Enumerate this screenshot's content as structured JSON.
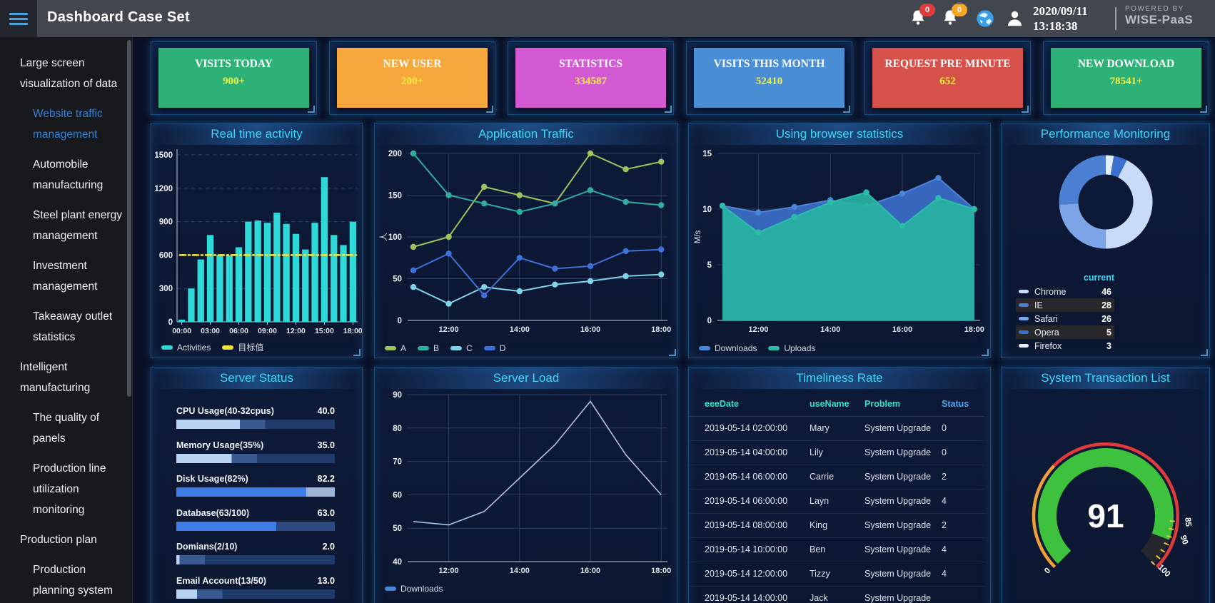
{
  "header": {
    "title": "Dashboard Case Set",
    "date": "2020/09/11",
    "time": "13:18:38",
    "powered_by": "POWERED BY",
    "brand": "WISE-PaaS",
    "badges": [
      {
        "count": "0",
        "color": "#e23b3b"
      },
      {
        "count": "0",
        "color": "#f5a623"
      }
    ]
  },
  "sidebar": {
    "active_color": "#2c82da",
    "items": [
      {
        "label": "Large screen visualization of data",
        "level": 0,
        "active": false
      },
      {
        "label": "Website traffic management",
        "level": 1,
        "active": true
      },
      {
        "label": "Automobile manufacturing",
        "level": 1,
        "active": false
      },
      {
        "label": "Steel plant energy management",
        "level": 1,
        "active": false
      },
      {
        "label": "Investment management",
        "level": 1,
        "active": false
      },
      {
        "label": "Takeaway outlet statistics",
        "level": 1,
        "active": false
      },
      {
        "label": "Intelligent manufacturing",
        "level": 0,
        "active": false
      },
      {
        "label": "The quality of panels",
        "level": 1,
        "active": false
      },
      {
        "label": "Production line utilization monitoring",
        "level": 1,
        "active": false
      },
      {
        "label": "Production plan",
        "level": 0,
        "active": false
      },
      {
        "label": "Production planning system",
        "level": 1,
        "active": false
      }
    ]
  },
  "stat_cards": [
    {
      "title": "VISITS TODAY",
      "value": "900+",
      "color": "#2eb177"
    },
    {
      "title": "NEW USER",
      "value": "200+",
      "color": "#f7a83c"
    },
    {
      "title": "STATISTICS",
      "value": "334587",
      "color": "#d45ad4"
    },
    {
      "title": "VISITS THIS MONTH",
      "value": "52410",
      "color": "#4a8ed6"
    },
    {
      "title": "REQUEST PRE MINUTE",
      "value": "652",
      "color": "#d5514a"
    },
    {
      "title": "NEW DOWNLOAD",
      "value": "78541+",
      "color": "#2eb177"
    }
  ],
  "value_color": "#f6f23a",
  "chart_data": [
    {
      "id": "realtime",
      "type": "bar",
      "title": "Real time activity",
      "series_name": "Activities",
      "values": [
        20,
        300,
        560,
        780,
        600,
        595,
        670,
        900,
        910,
        890,
        980,
        880,
        790,
        650,
        890,
        1300,
        780,
        690,
        900
      ],
      "x_ticks": [
        "00:00",
        "03:00",
        "06:00",
        "09:00",
        "12:00",
        "15:00",
        "18:00"
      ],
      "x_tick_indices": [
        0,
        3,
        6,
        9,
        12,
        15,
        18
      ],
      "ylim": [
        0,
        1500
      ],
      "ytick_step": 300,
      "bar_color": "#2ed9d9",
      "target_value": 600,
      "target_color": "#f2e23a",
      "legend": [
        {
          "label": "Activities",
          "color": "#2ed9d9"
        },
        {
          "label": "目标值",
          "color": "#f2e23a"
        }
      ]
    },
    {
      "id": "apptraffic",
      "type": "line",
      "title": "Application Traffic",
      "ylabel": "人",
      "ylim": [
        0,
        200
      ],
      "ytick_step": 50,
      "x_ticks": [
        "12:00",
        "14:00",
        "16:00",
        "18:00"
      ],
      "x_tick_indices": [
        1,
        3,
        5,
        7
      ],
      "series": [
        {
          "name": "A",
          "color": "#9dc35e",
          "values": [
            88,
            100,
            160,
            150,
            140,
            200,
            181,
            190
          ]
        },
        {
          "name": "B",
          "color": "#2fae9e",
          "values": [
            200,
            150,
            140,
            130,
            140,
            156,
            142,
            138
          ]
        },
        {
          "name": "C",
          "color": "#7ed3e8",
          "values": [
            40,
            20,
            40,
            35,
            43,
            47,
            53,
            55
          ]
        },
        {
          "name": "D",
          "color": "#3f6fd8",
          "values": [
            60,
            80,
            30,
            75,
            62,
            65,
            83,
            85
          ]
        }
      ]
    },
    {
      "id": "browser",
      "type": "area",
      "title": "Using browser statistics",
      "ylabel": "M/s",
      "ylim": [
        0,
        15
      ],
      "ytick_step": 5,
      "x_ticks": [
        "12:00",
        "14:00",
        "16:00",
        "18:00"
      ],
      "x_tick_indices": [
        1,
        3,
        5,
        7
      ],
      "series": [
        {
          "name": "Downloads",
          "color": "#4a86d8",
          "fill": "#3a6ec8",
          "values": [
            10.3,
            9.7,
            10.2,
            10.8,
            10.3,
            11.4,
            12.8,
            10
          ]
        },
        {
          "name": "Uploads",
          "color": "#2bbcaa",
          "fill": "#28b2a2",
          "values": [
            10.3,
            7.9,
            9.3,
            10.6,
            11.5,
            8.5,
            11,
            10
          ]
        }
      ]
    },
    {
      "id": "perfdonut",
      "type": "donut",
      "title": "Performance Monitoring",
      "legend_header": "current",
      "slices": [
        {
          "name": "Chrome",
          "value": 46,
          "color": "#c9dcf7"
        },
        {
          "name": "IE",
          "value": 28,
          "color": "#4a7fd2"
        },
        {
          "name": "Safari",
          "value": 26,
          "color": "#7ca4e6"
        },
        {
          "name": "Opera",
          "value": 5,
          "color": "#3a6fd0"
        },
        {
          "name": "Firefox",
          "value": 3,
          "color": "#e6eefb"
        }
      ],
      "stripe_rows": [
        1,
        3
      ]
    },
    {
      "id": "serverstatus",
      "type": "hbar",
      "title": "Server Status",
      "items": [
        {
          "label": "CPU Usage(40-32cpus)",
          "value": "40.0",
          "pct": 40,
          "bar_color": "#b9d2f2",
          "mid_color": "#3a5a8f",
          "track_color": "#203a69"
        },
        {
          "label": "Memory Usage(35%)",
          "value": "35.0",
          "pct": 35,
          "bar_color": "#b9d2f2",
          "mid_color": "#3a5a8f",
          "track_color": "#203a69"
        },
        {
          "label": "Disk Usage(82%)",
          "value": "82.2",
          "pct": 82,
          "bar_color": "#3e7ce8",
          "mid_color": "#9db4d6",
          "track_color": "#9db4d6"
        },
        {
          "label": "Database(63/100)",
          "value": "63.0",
          "pct": 63,
          "bar_color": "#3e7ce8",
          "mid_color": "#2c4a80",
          "track_color": "#2c4a80"
        },
        {
          "label": "Domians(2/10)",
          "value": "2.0",
          "pct": 2,
          "bar_color": "#b9d2f2",
          "mid_color": "#3a5a8f",
          "track_color": "#203a69"
        },
        {
          "label": "Email Account(13/50)",
          "value": "13.0",
          "pct": 13,
          "bar_color": "#b9d2f2",
          "mid_color": "#3a5a8f",
          "track_color": "#203a69"
        }
      ]
    },
    {
      "id": "serverload",
      "type": "line",
      "title": "Server Load",
      "ylim": [
        40,
        90
      ],
      "ytick_step": 10,
      "x_ticks": [
        "12:00",
        "14:00",
        "16:00",
        "18:00"
      ],
      "x_tick_indices": [
        1,
        3,
        5,
        7
      ],
      "series": [
        {
          "name": "Downloads",
          "color": "#a9c3e8",
          "values": [
            52,
            51,
            55,
            65,
            75,
            88,
            72,
            60
          ]
        }
      ],
      "legend": [
        {
          "label": "Downloads",
          "color": "#4a86d8"
        }
      ]
    },
    {
      "id": "timeliness",
      "type": "table",
      "title": "Timeliness Rate",
      "columns": [
        "eeeDate",
        "useName",
        "Problem",
        "Status"
      ],
      "header_colors": [
        "#2fe3c4",
        "#2fe3c4",
        "#2fe3c4",
        "#4aa6f0"
      ],
      "rows": [
        [
          "2019-05-14 02:00:00",
          "Mary",
          "System Upgrade",
          "0"
        ],
        [
          "2019-05-14 04:00:00",
          "Lily",
          "System Upgrade",
          "0"
        ],
        [
          "2019-05-14 06:00:00",
          "Carrie",
          "System Upgrade",
          "2"
        ],
        [
          "2019-05-14 06:00:00",
          "Layn",
          "System Upgrade",
          "4"
        ],
        [
          "2019-05-14 08:00:00",
          "King",
          "System Upgrade",
          "2"
        ],
        [
          "2019-05-14 10:00:00",
          "Ben",
          "System Upgrade",
          "4"
        ],
        [
          "2019-05-14 12:00:00",
          "Tizzy",
          "System Upgrade",
          "4"
        ],
        [
          "2019-05-14 14:00:00",
          "Jack",
          "System Upgrade",
          ""
        ]
      ]
    },
    {
      "id": "gauge",
      "type": "gauge",
      "title": "System Transaction List",
      "value": 91,
      "min": 0,
      "max": 100,
      "visible_tick_values": [
        0,
        85,
        90,
        100
      ],
      "arc_color": "#3ec23e",
      "remainder_color": "#26262e",
      "scale_segments": [
        {
          "to": 33,
          "color": "#ef9f3a"
        },
        {
          "to": 100,
          "color": "#e23a3a"
        }
      ],
      "tick_color": "#f2c83a",
      "value_color": "#ffffff"
    }
  ]
}
